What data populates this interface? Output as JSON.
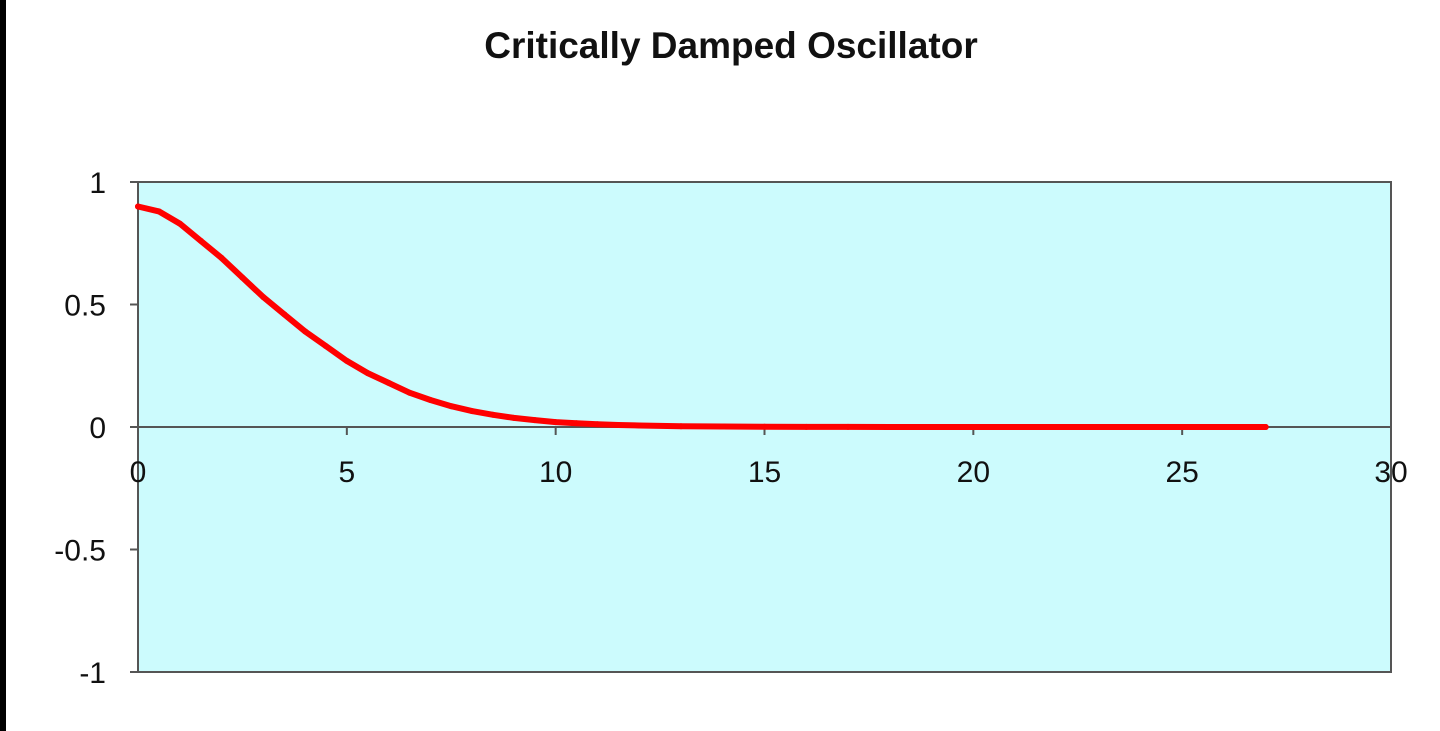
{
  "chart_data": {
    "type": "line",
    "title": "Critically Damped Oscillator",
    "xlabel": "",
    "ylabel": "",
    "xlim": [
      0,
      30
    ],
    "ylim": [
      -1,
      1
    ],
    "x_ticks": [
      "0",
      "5",
      "10",
      "15",
      "20",
      "25",
      "30"
    ],
    "y_ticks": [
      "1",
      "0.5",
      "0",
      "-0.5",
      "-1"
    ],
    "grid": false,
    "legend": "none",
    "plot_background": "#ccfbfd",
    "series": [
      {
        "color": "#ff0000",
        "x": [
          0,
          0.5,
          1,
          1.5,
          2,
          2.5,
          3,
          3.5,
          4,
          4.5,
          5,
          5.5,
          6,
          6.5,
          7,
          7.5,
          8,
          8.5,
          9,
          9.5,
          10,
          10.5,
          11,
          11.5,
          12,
          13,
          14,
          15,
          16,
          17,
          18,
          19,
          20,
          21,
          22,
          23,
          24,
          25,
          26,
          27
        ],
        "y": [
          0.9,
          0.88,
          0.83,
          0.76,
          0.69,
          0.61,
          0.53,
          0.46,
          0.39,
          0.33,
          0.27,
          0.22,
          0.18,
          0.14,
          0.11,
          0.085,
          0.065,
          0.05,
          0.037,
          0.028,
          0.02,
          0.015,
          0.011,
          0.008,
          0.006,
          0.003,
          0.002,
          0.001,
          0.0005,
          0.0003,
          0.0002,
          0.0001,
          0,
          0,
          0,
          0,
          0,
          0,
          0,
          0
        ]
      }
    ]
  }
}
